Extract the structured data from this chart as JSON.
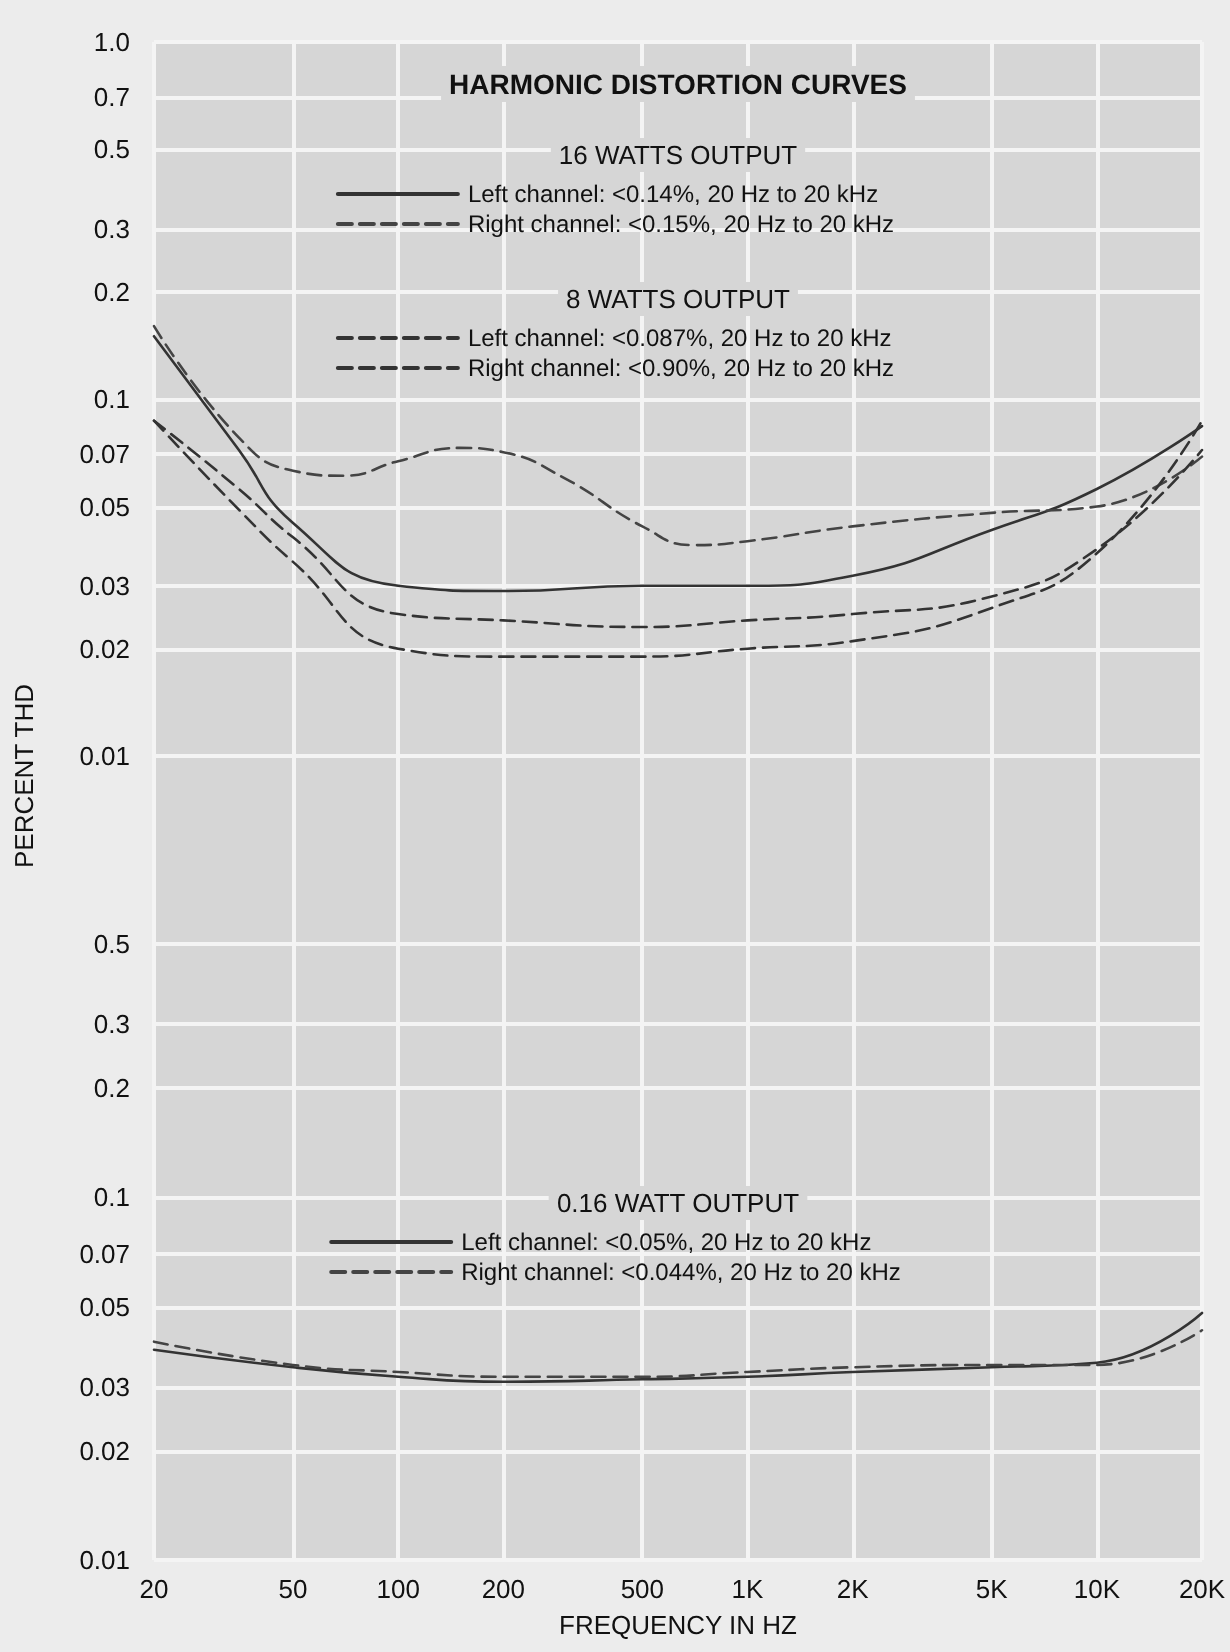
{
  "chart_data": [
    {
      "type": "line",
      "title": "HARMONIC DISTORTION CURVES",
      "ylabel": "PERCENT THD",
      "annotations": [
        "16 WATTS OUTPUT",
        "8 WATTS OUTPUT"
      ],
      "x": [
        20,
        35,
        50,
        100,
        200,
        500,
        1000,
        2000,
        5000,
        10000,
        20000
      ],
      "series": [
        {
          "name": "Left channel: <0.14%, 20 Hz to 20 kHz",
          "color": "#333333",
          "line_style": "solid",
          "values": [
            0.15,
            0.072,
            0.045,
            0.03,
            0.029,
            0.03,
            0.03,
            0.032,
            0.043,
            0.056,
            0.084
          ]
        },
        {
          "name": "Right channel: <0.15%, 20 Hz to 20 kHz",
          "color": "#444444",
          "line_style": "dashed",
          "x": [
            20,
            35,
            50,
            70,
            100,
            150,
            200,
            300,
            500,
            700,
            1000,
            2000,
            5000,
            10000,
            20000
          ],
          "values": [
            0.16,
            0.078,
            0.063,
            0.061,
            0.067,
            0.073,
            0.071,
            0.06,
            0.044,
            0.039,
            0.04,
            0.044,
            0.048,
            0.05,
            0.069
          ]
        },
        {
          "name": "Left channel: <0.087%, 20 Hz to 20 kHz",
          "color": "#333333",
          "line_style": "dashed",
          "values": [
            0.087,
            0.056,
            0.041,
            0.025,
            0.024,
            0.023,
            0.024,
            0.025,
            0.028,
            0.038,
            0.072
          ]
        },
        {
          "name": "Right channel: <0.90%, 20 Hz to 20 kHz",
          "color": "#333333",
          "line_style": "dashed",
          "values": [
            0.087,
            0.049,
            0.035,
            0.02,
            0.019,
            0.019,
            0.02,
            0.021,
            0.026,
            0.037,
            0.087
          ]
        }
      ],
      "log": "xy",
      "xlim": [
        20,
        20000
      ],
      "ylim": [
        0.0045,
        1
      ],
      "xticks": [
        20,
        50,
        100,
        200,
        500,
        1000,
        2000,
        5000,
        10000,
        20000
      ],
      "yticks": [
        0.01,
        0.02,
        0.03,
        0.05,
        0.07,
        0.1,
        0.2,
        0.3,
        0.5,
        0.7,
        {
          "value": 1,
          "label": "1.0"
        }
      ],
      "tick_labels": "y",
      "grid": true,
      "legend": "top",
      "marker": "none"
    },
    {
      "type": "line",
      "xlabel": "FREQUENCY IN HZ",
      "annotations": [
        "0.16 WATT OUTPUT"
      ],
      "x": [
        20,
        50,
        100,
        200,
        500,
        1000,
        2000,
        5000,
        10000,
        20000
      ],
      "series": [
        {
          "name": "Left channel: <0.05%, 20 Hz to 20 kHz",
          "color": "#333333",
          "line_style": "solid",
          "values": [
            0.038,
            0.034,
            0.032,
            0.031,
            0.0315,
            0.032,
            0.033,
            0.034,
            0.035,
            0.048
          ]
        },
        {
          "name": "Right channel: <0.044%, 20 Hz to 20 kHz",
          "color": "#444444",
          "line_style": "dashed",
          "values": [
            0.04,
            0.0345,
            0.033,
            0.032,
            0.032,
            0.033,
            0.034,
            0.0345,
            0.0345,
            0.043
          ]
        }
      ],
      "log": "xy",
      "xlim": [
        20,
        20000
      ],
      "ylim": [
        0.01,
        0.75
      ],
      "xticks": [
        20,
        50,
        100,
        200,
        500,
        {
          "value": 1000,
          "label": "1K"
        },
        {
          "value": 2000,
          "label": "2K"
        },
        {
          "value": 5000,
          "label": "5K"
        },
        {
          "value": 10000,
          "label": "10K"
        },
        {
          "value": 20000,
          "label": "20K"
        }
      ],
      "yticks": [
        0.01,
        0.02,
        0.03,
        0.05,
        0.07,
        0.1,
        0.2,
        0.3,
        0.5
      ],
      "grid": true,
      "legend": "center",
      "marker": "none"
    }
  ]
}
